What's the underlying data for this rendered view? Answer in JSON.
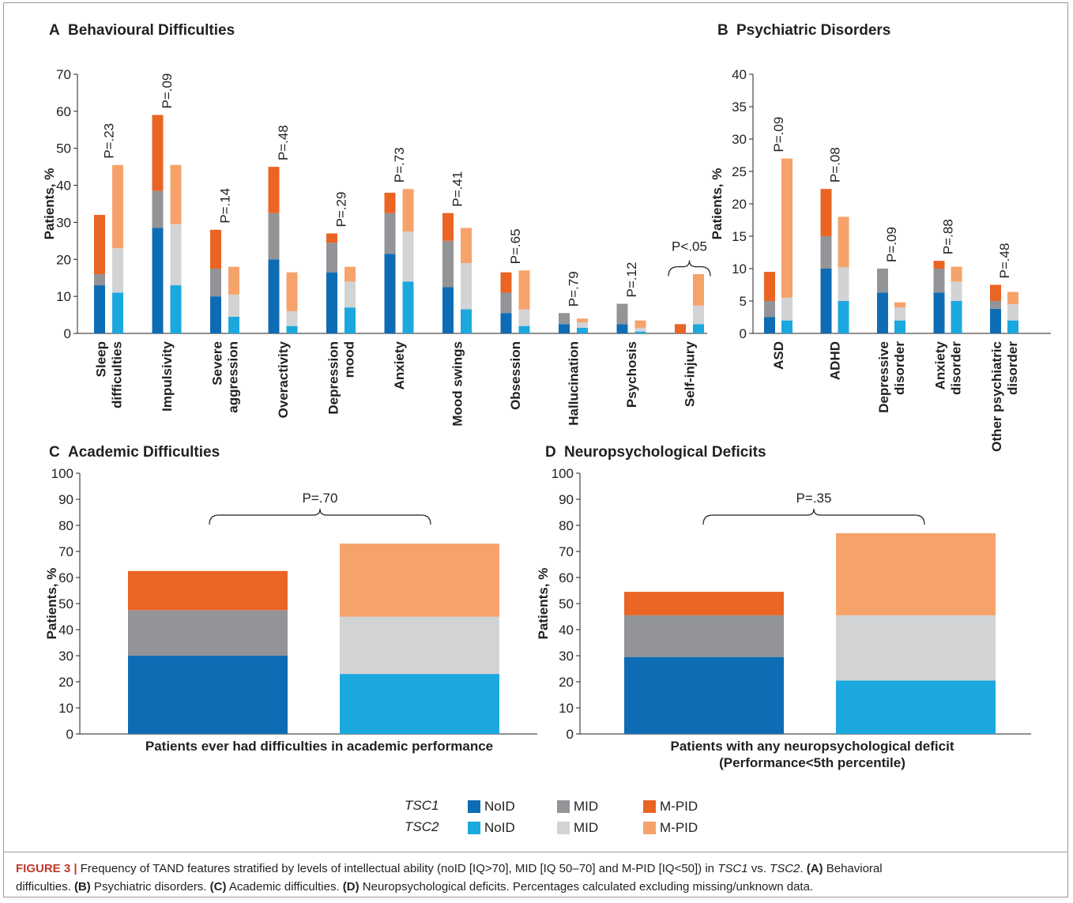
{
  "colors": {
    "tsc1_noid": "#0e6cb5",
    "tsc1_mid": "#929497",
    "tsc1_mpid": "#ea6423",
    "tsc2_noid": "#1ba8df",
    "tsc2_mid": "#d2d3d5",
    "tsc2_mpid": "#f6a36b"
  },
  "legend": {
    "tsc1": "TSC1",
    "tsc2": "TSC2",
    "noid": "NoID",
    "mid": "MID",
    "mpid": "M-PID"
  },
  "caption": {
    "figure_label": "FIGURE 3 |",
    "p1": " Frequency of TAND features stratified by levels of intellectual ability (noID [IQ>70], MID [IQ 50–70] and M-PID [IQ<50]) in ",
    "tsc1": "TSC1",
    "p2": " vs. ",
    "tsc2": "TSC2",
    "p3": ". ",
    "a": "(A)",
    "a_text": " Behavioral",
    "line2_start": "difficulties. ",
    "b": "(B)",
    "b_text": " Psychiatric disorders. ",
    "c": "(C)",
    "c_text": " Academic difficulties. ",
    "d": "(D)",
    "d_text": " Neuropsychological deficits. Percentages calculated excluding missing/unknown data."
  },
  "chart_data": [
    {
      "panel": "A",
      "type": "bar",
      "title": "Behavioural  Difficulties",
      "ylabel": "Patients, %",
      "ylim": [
        0,
        70
      ],
      "yticks": [
        0,
        10,
        20,
        30,
        40,
        50,
        60,
        70
      ],
      "stacked": true,
      "categories": [
        {
          "label": [
            "Sleep",
            "difficulties"
          ],
          "p": "P=.23",
          "tsc1": [
            13,
            3,
            16
          ],
          "tsc2": [
            11,
            12,
            22.5
          ]
        },
        {
          "label": [
            "Impulsivity"
          ],
          "p": "P=.09",
          "tsc1": [
            28.5,
            10,
            20.5
          ],
          "tsc2": [
            13,
            16.5,
            16
          ]
        },
        {
          "label": [
            "Severe",
            "aggression"
          ],
          "p": "P=.14",
          "tsc1": [
            10,
            7.5,
            10.5
          ],
          "tsc2": [
            4.5,
            6,
            7.5
          ]
        },
        {
          "label": [
            "Overactivity"
          ],
          "p": "P=.48",
          "tsc1": [
            20,
            12.5,
            12.5
          ],
          "tsc2": [
            2,
            4,
            10.5
          ]
        },
        {
          "label": [
            "Depression",
            "mood"
          ],
          "p": "P=.29",
          "tsc1": [
            16.5,
            8,
            2.5
          ],
          "tsc2": [
            7,
            7,
            4
          ]
        },
        {
          "label": [
            "Anxiety"
          ],
          "p": "P=.73",
          "tsc1": [
            21.5,
            11,
            5.5
          ],
          "tsc2": [
            14,
            13.5,
            11.5
          ]
        },
        {
          "label": [
            "Mood swings"
          ],
          "p": "P=.41",
          "tsc1": [
            12.5,
            12.5,
            7.5
          ],
          "tsc2": [
            6.5,
            12.5,
            9.5
          ]
        },
        {
          "label": [
            "Obsession"
          ],
          "p": "P=.65",
          "tsc1": [
            5.5,
            5.5,
            5.5
          ],
          "tsc2": [
            2,
            4.5,
            10.5
          ]
        },
        {
          "label": [
            "Hallucination"
          ],
          "p": "P=.79",
          "tsc1": [
            2.5,
            3,
            0
          ],
          "tsc2": [
            1.5,
            1.5,
            1
          ]
        },
        {
          "label": [
            "Psychosis"
          ],
          "p": "P=.12",
          "tsc1": [
            2.5,
            5.5,
            0
          ],
          "tsc2": [
            0.5,
            1,
            2
          ]
        },
        {
          "label": [
            "Self-injury"
          ],
          "p": "P<.05",
          "tsc1": [
            0,
            0,
            2.5
          ],
          "tsc2": [
            2.5,
            5,
            8.5
          ]
        }
      ]
    },
    {
      "panel": "B",
      "type": "bar",
      "title": "Psychiatric Disorders",
      "ylabel": "Patients, %",
      "ylim": [
        0,
        40
      ],
      "yticks": [
        0,
        5,
        10,
        15,
        20,
        25,
        30,
        35,
        40
      ],
      "stacked": true,
      "categories": [
        {
          "label": [
            "ASD"
          ],
          "p": "P=.09",
          "tsc1": [
            2.5,
            2.5,
            4.5
          ],
          "tsc2": [
            2,
            3.5,
            21.5
          ]
        },
        {
          "label": [
            "ADHD"
          ],
          "p": "P=.08",
          "tsc1": [
            10,
            5,
            7.3
          ],
          "tsc2": [
            5,
            5.2,
            7.8
          ]
        },
        {
          "label": [
            "Depressive",
            "disorder"
          ],
          "p": "P=.09",
          "tsc1": [
            6.3,
            3.7,
            0
          ],
          "tsc2": [
            2,
            2,
            0.8
          ]
        },
        {
          "label": [
            "Anxiety",
            "disorder"
          ],
          "p": "P=.88",
          "tsc1": [
            6.3,
            3.7,
            1.2
          ],
          "tsc2": [
            5,
            3,
            2.3
          ]
        },
        {
          "label": [
            "Other psychiatric",
            "disorder"
          ],
          "p": "P=.48",
          "tsc1": [
            3.8,
            1.2,
            2.5
          ],
          "tsc2": [
            2,
            2.5,
            1.9
          ]
        }
      ]
    },
    {
      "panel": "C",
      "type": "bar",
      "title": "Academic Difficulties",
      "ylabel": "Patients, %",
      "ylim": [
        0,
        100
      ],
      "yticks": [
        0,
        10,
        20,
        30,
        40,
        50,
        60,
        70,
        80,
        90,
        100
      ],
      "stacked": true,
      "xlabel": [
        "Patients ever had difficulties in academic performance"
      ],
      "p": "P=.70",
      "tsc1": [
        30,
        17.5,
        15
      ],
      "tsc2": [
        23,
        22,
        28
      ]
    },
    {
      "panel": "D",
      "type": "bar",
      "title": "Neuropsychological Deficits",
      "ylabel": "Patients, %",
      "ylim": [
        0,
        100
      ],
      "yticks": [
        0,
        10,
        20,
        30,
        40,
        50,
        60,
        70,
        80,
        90,
        100
      ],
      "stacked": true,
      "xlabel": [
        "Patients with any neuropsychological deficit",
        "(Performance<5th percentile)"
      ],
      "p": "P=.35",
      "tsc1": [
        29.5,
        16,
        9
      ],
      "tsc2": [
        20.5,
        25,
        31.5
      ]
    }
  ]
}
